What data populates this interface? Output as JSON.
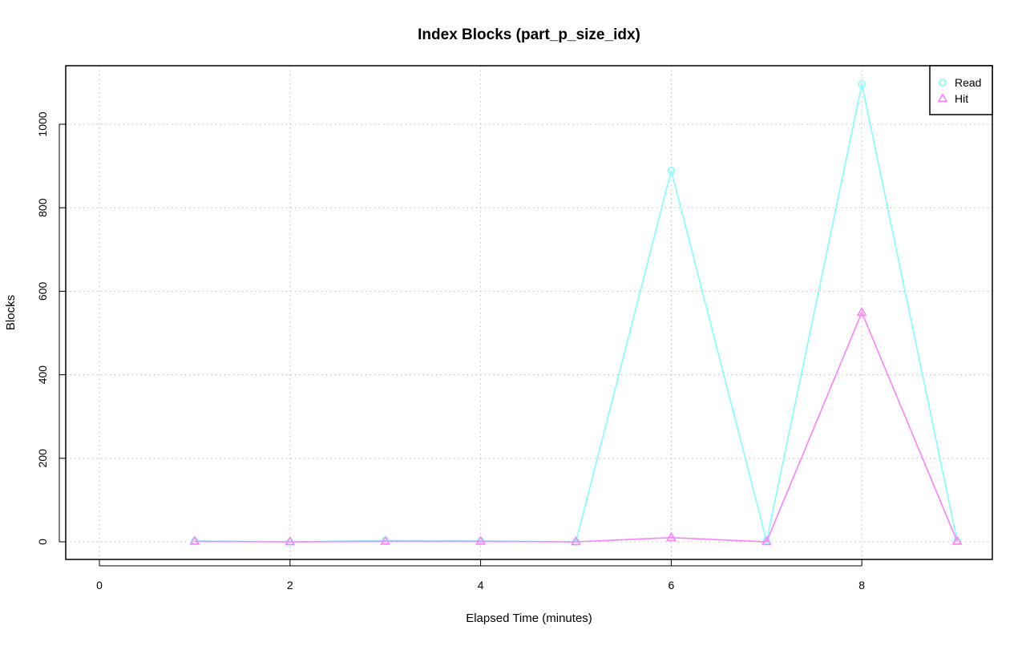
{
  "chart_data": {
    "type": "line",
    "title": "Index Blocks (part_p_size_idx)",
    "xlabel": "Elapsed Time (minutes)",
    "ylabel": "Blocks",
    "xlim": [
      0,
      9
    ],
    "ylim": [
      0,
      1100
    ],
    "xticks": [
      0,
      2,
      4,
      6,
      8
    ],
    "yticks": [
      0,
      200,
      400,
      600,
      800,
      1000
    ],
    "grid": true,
    "legend_position": "top-right",
    "x": [
      1,
      2,
      3,
      4,
      5,
      6,
      7,
      8,
      9
    ],
    "series": [
      {
        "name": "Read",
        "color": "#80FFFF",
        "marker": "circle",
        "values": [
          2,
          0,
          3,
          2,
          0,
          889,
          2,
          1096,
          2
        ]
      },
      {
        "name": "Hit",
        "color": "#FF80FF",
        "marker": "triangle",
        "values": [
          1,
          0,
          1,
          1,
          0,
          10,
          0,
          549,
          1
        ]
      }
    ]
  }
}
